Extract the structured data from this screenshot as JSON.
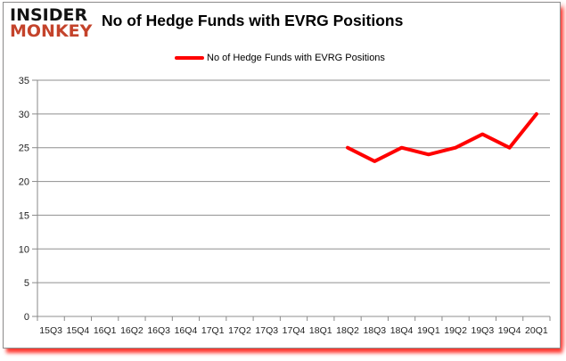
{
  "logo": {
    "line1": "INSIDER",
    "line2": "MONKEY"
  },
  "header": {
    "title": "No of Hedge Funds with EVRG Positions"
  },
  "legend": {
    "label": "No of Hedge Funds with EVRG Positions"
  },
  "colors": {
    "brand_red": "#c4432b",
    "series_red": "#ff0000",
    "grid_gray": "#8f8f8f",
    "axis_gray": "#8a8a8a",
    "label_text": "#1f1f1f",
    "frame_border": "#8c8c8c"
  },
  "chart_data": {
    "type": "line",
    "title": "No of Hedge Funds with EVRG Positions",
    "xlabel": "",
    "ylabel": "",
    "ylim": [
      0,
      35
    ],
    "ytick_step": 5,
    "grid": true,
    "legend_position": "top-center",
    "categories": [
      "15Q3",
      "15Q4",
      "16Q1",
      "16Q2",
      "16Q3",
      "16Q4",
      "17Q1",
      "17Q2",
      "17Q3",
      "17Q4",
      "18Q1",
      "18Q2",
      "18Q3",
      "18Q4",
      "19Q1",
      "19Q2",
      "19Q3",
      "19Q4",
      "20Q1"
    ],
    "series": [
      {
        "name": "No of Hedge Funds with EVRG Positions",
        "color": "#ff0000",
        "values": [
          null,
          null,
          null,
          null,
          null,
          null,
          null,
          null,
          null,
          null,
          null,
          25,
          23,
          25,
          24,
          25,
          27,
          25,
          30
        ]
      }
    ]
  }
}
